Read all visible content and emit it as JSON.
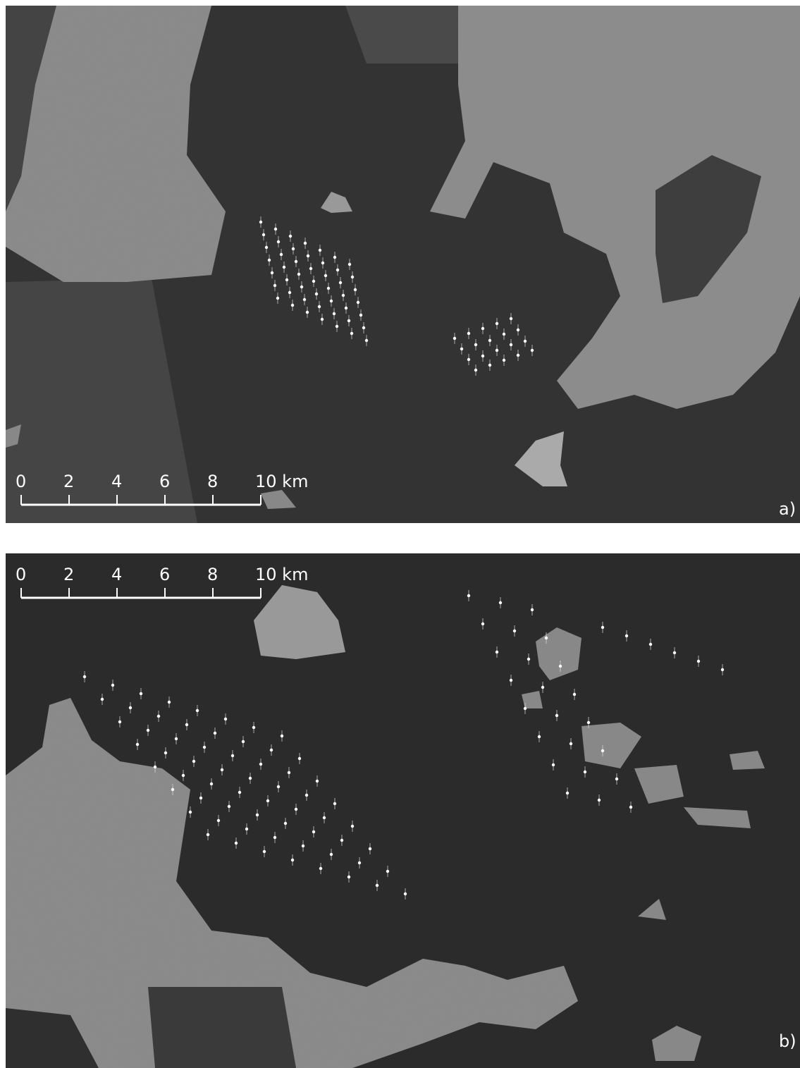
{
  "panels": [
    {
      "label": "a)",
      "scale_bar": {
        "labels": [
          "0",
          "2",
          "4",
          "6",
          "8",
          "10 km"
        ]
      }
    },
    {
      "label": "b)",
      "scale_bar": {
        "labels": [
          "0",
          "2",
          "4",
          "6",
          "8",
          "10 km"
        ]
      }
    }
  ]
}
